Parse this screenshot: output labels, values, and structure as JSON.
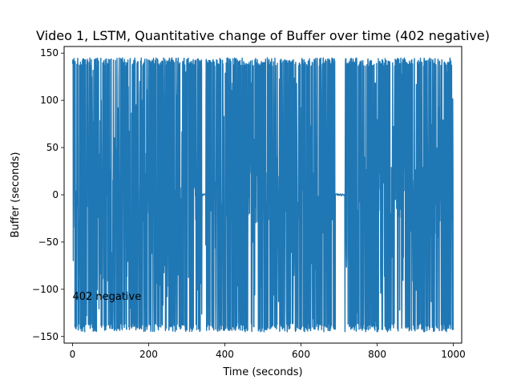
{
  "chart_data": {
    "type": "line",
    "title": "Video 1, LSTM, Quantitative change of Buffer over time (402 negative)",
    "xlabel": "Time (seconds)",
    "ylabel": "Buffer (seconds)",
    "xlim": [
      -22,
      1022
    ],
    "ylim": [
      -157,
      157
    ],
    "x_ticks": [
      0,
      200,
      400,
      600,
      800,
      1000
    ],
    "y_ticks": [
      -150,
      -100,
      -50,
      0,
      50,
      100,
      150
    ],
    "x_tick_labels": [
      "0",
      "200",
      "400",
      "600",
      "800",
      "1000"
    ],
    "y_tick_labels": [
      "−150",
      "−100",
      "−50",
      "0",
      "50",
      "100",
      "150"
    ],
    "annotation": {
      "text": "402 negative",
      "x": 0,
      "y": -107
    },
    "grid": false,
    "series": [
      {
        "color": "#1f77b4",
        "x": [
          0,
          1000
        ],
        "y_range": [
          -145,
          145
        ],
        "description_ranges": [
          {
            "x": [
              0,
              340
            ],
            "mode": "oscillating",
            "y": [
              -145,
              145
            ]
          },
          {
            "x": [
              340,
              350
            ],
            "mode": "flat",
            "y": [
              -3,
              3
            ]
          },
          {
            "x": [
              350,
              690
            ],
            "mode": "oscillating",
            "y": [
              -145,
              145
            ]
          },
          {
            "x": [
              690,
              715
            ],
            "mode": "flat",
            "y": [
              -3,
              3
            ]
          },
          {
            "x": [
              715,
              1000
            ],
            "mode": "oscillating",
            "y": [
              -145,
              145
            ]
          }
        ]
      }
    ]
  }
}
